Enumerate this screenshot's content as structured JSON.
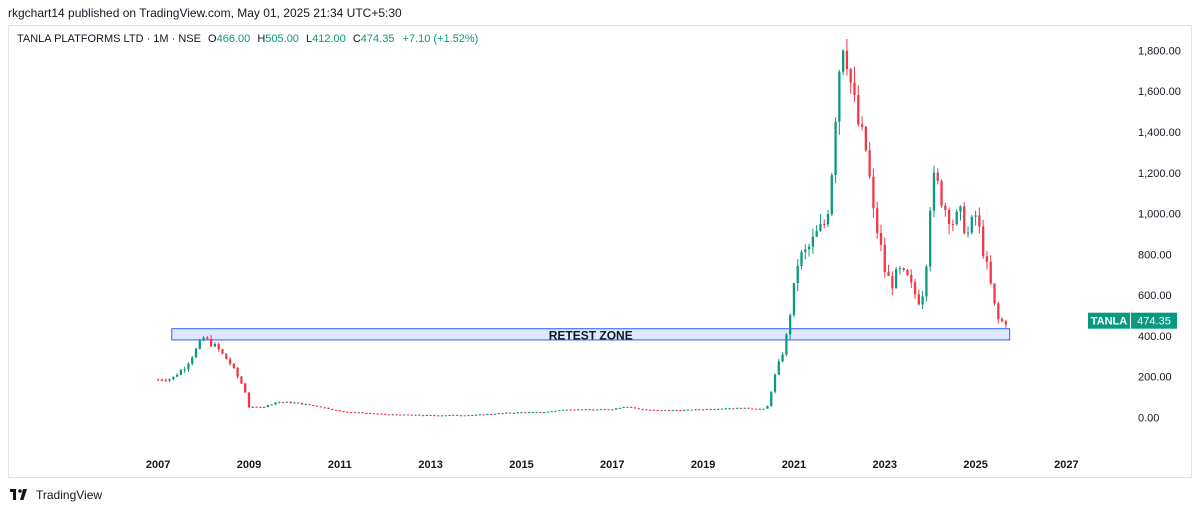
{
  "header": {
    "publisher_line": "rkgchart14 published on TradingView.com, May 01, 2025 21:34 UTC+5:30"
  },
  "legend": {
    "symbol_line": "TANLA PLATFORMS LTD · 1M · NSE",
    "open_label": "O",
    "open": "466.00",
    "high_label": "H",
    "high": "505.00",
    "low_label": "L",
    "low": "412.00",
    "close_label": "C",
    "close": "474.35",
    "change": "+7.10 (+1.52%)"
  },
  "footer": {
    "brand": "TradingView"
  },
  "colors": {
    "up": "#089981",
    "down": "#f23645",
    "zone": "#2962ff",
    "text": "#131722"
  },
  "chart_data": {
    "type": "candlestick",
    "interval": "1M",
    "x_tick_labels": [
      "2007",
      "2009",
      "2011",
      "2013",
      "2015",
      "2017",
      "2019",
      "2021",
      "2023",
      "2025",
      "2027"
    ],
    "y_tick_labels": [
      "0.00",
      "200.00",
      "400.00",
      "600.00",
      "800.00",
      "1,000.00",
      "1,200.00",
      "1,400.00",
      "1,600.00",
      "1,800.00"
    ],
    "ylim": [
      -160,
      1920
    ],
    "xlim": [
      2006.6,
      2028.4
    ],
    "price_label": {
      "symbol": "TANLA",
      "value": "474.35",
      "numeric": 474.35
    },
    "zone": {
      "label": "RETEST ZONE",
      "date_start": 2007.3,
      "date_end": 2025.75,
      "price_low": 380,
      "price_high": 435
    },
    "series_keypoints": [
      [
        2007.0,
        185
      ],
      [
        2007.3,
        190
      ],
      [
        2007.6,
        250
      ],
      [
        2007.8,
        320
      ],
      [
        2008.0,
        390
      ],
      [
        2008.3,
        340
      ],
      [
        2008.6,
        260
      ],
      [
        2008.9,
        140
      ],
      [
        2009.0,
        50
      ],
      [
        2009.3,
        50
      ],
      [
        2009.6,
        75
      ],
      [
        2010.0,
        72
      ],
      [
        2010.5,
        55
      ],
      [
        2011.0,
        30
      ],
      [
        2012.0,
        15
      ],
      [
        2013.0,
        10
      ],
      [
        2014.0,
        12
      ],
      [
        2014.5,
        20
      ],
      [
        2015.0,
        25
      ],
      [
        2015.5,
        25
      ],
      [
        2016.0,
        40
      ],
      [
        2016.5,
        38
      ],
      [
        2017.0,
        40
      ],
      [
        2017.3,
        55
      ],
      [
        2017.6,
        40
      ],
      [
        2018.0,
        35
      ],
      [
        2018.5,
        35
      ],
      [
        2019.0,
        40
      ],
      [
        2019.5,
        45
      ],
      [
        2020.0,
        45
      ],
      [
        2020.4,
        40
      ],
      [
        2020.6,
        220
      ],
      [
        2020.8,
        350
      ],
      [
        2020.95,
        560
      ],
      [
        2021.1,
        780
      ],
      [
        2021.3,
        820
      ],
      [
        2021.5,
        900
      ],
      [
        2021.7,
        960
      ],
      [
        2021.8,
        1100
      ],
      [
        2021.9,
        1450
      ],
      [
        2022.0,
        1720
      ],
      [
        2022.1,
        1880
      ],
      [
        2022.25,
        1640
      ],
      [
        2022.4,
        1450
      ],
      [
        2022.6,
        1300
      ],
      [
        2022.75,
        1000
      ],
      [
        2022.9,
        850
      ],
      [
        2023.0,
        720
      ],
      [
        2023.15,
        650
      ],
      [
        2023.3,
        720
      ],
      [
        2023.5,
        680
      ],
      [
        2023.7,
        590
      ],
      [
        2023.8,
        560
      ],
      [
        2023.9,
        720
      ],
      [
        2024.0,
        1050
      ],
      [
        2024.1,
        1180
      ],
      [
        2024.3,
        1040
      ],
      [
        2024.5,
        960
      ],
      [
        2024.7,
        1000
      ],
      [
        2024.8,
        880
      ],
      [
        2024.9,
        940
      ],
      [
        2025.0,
        990
      ],
      [
        2025.1,
        900
      ],
      [
        2025.2,
        780
      ],
      [
        2025.3,
        690
      ],
      [
        2025.4,
        560
      ],
      [
        2025.5,
        480
      ],
      [
        2025.6,
        466
      ],
      [
        2025.7,
        474
      ]
    ]
  }
}
